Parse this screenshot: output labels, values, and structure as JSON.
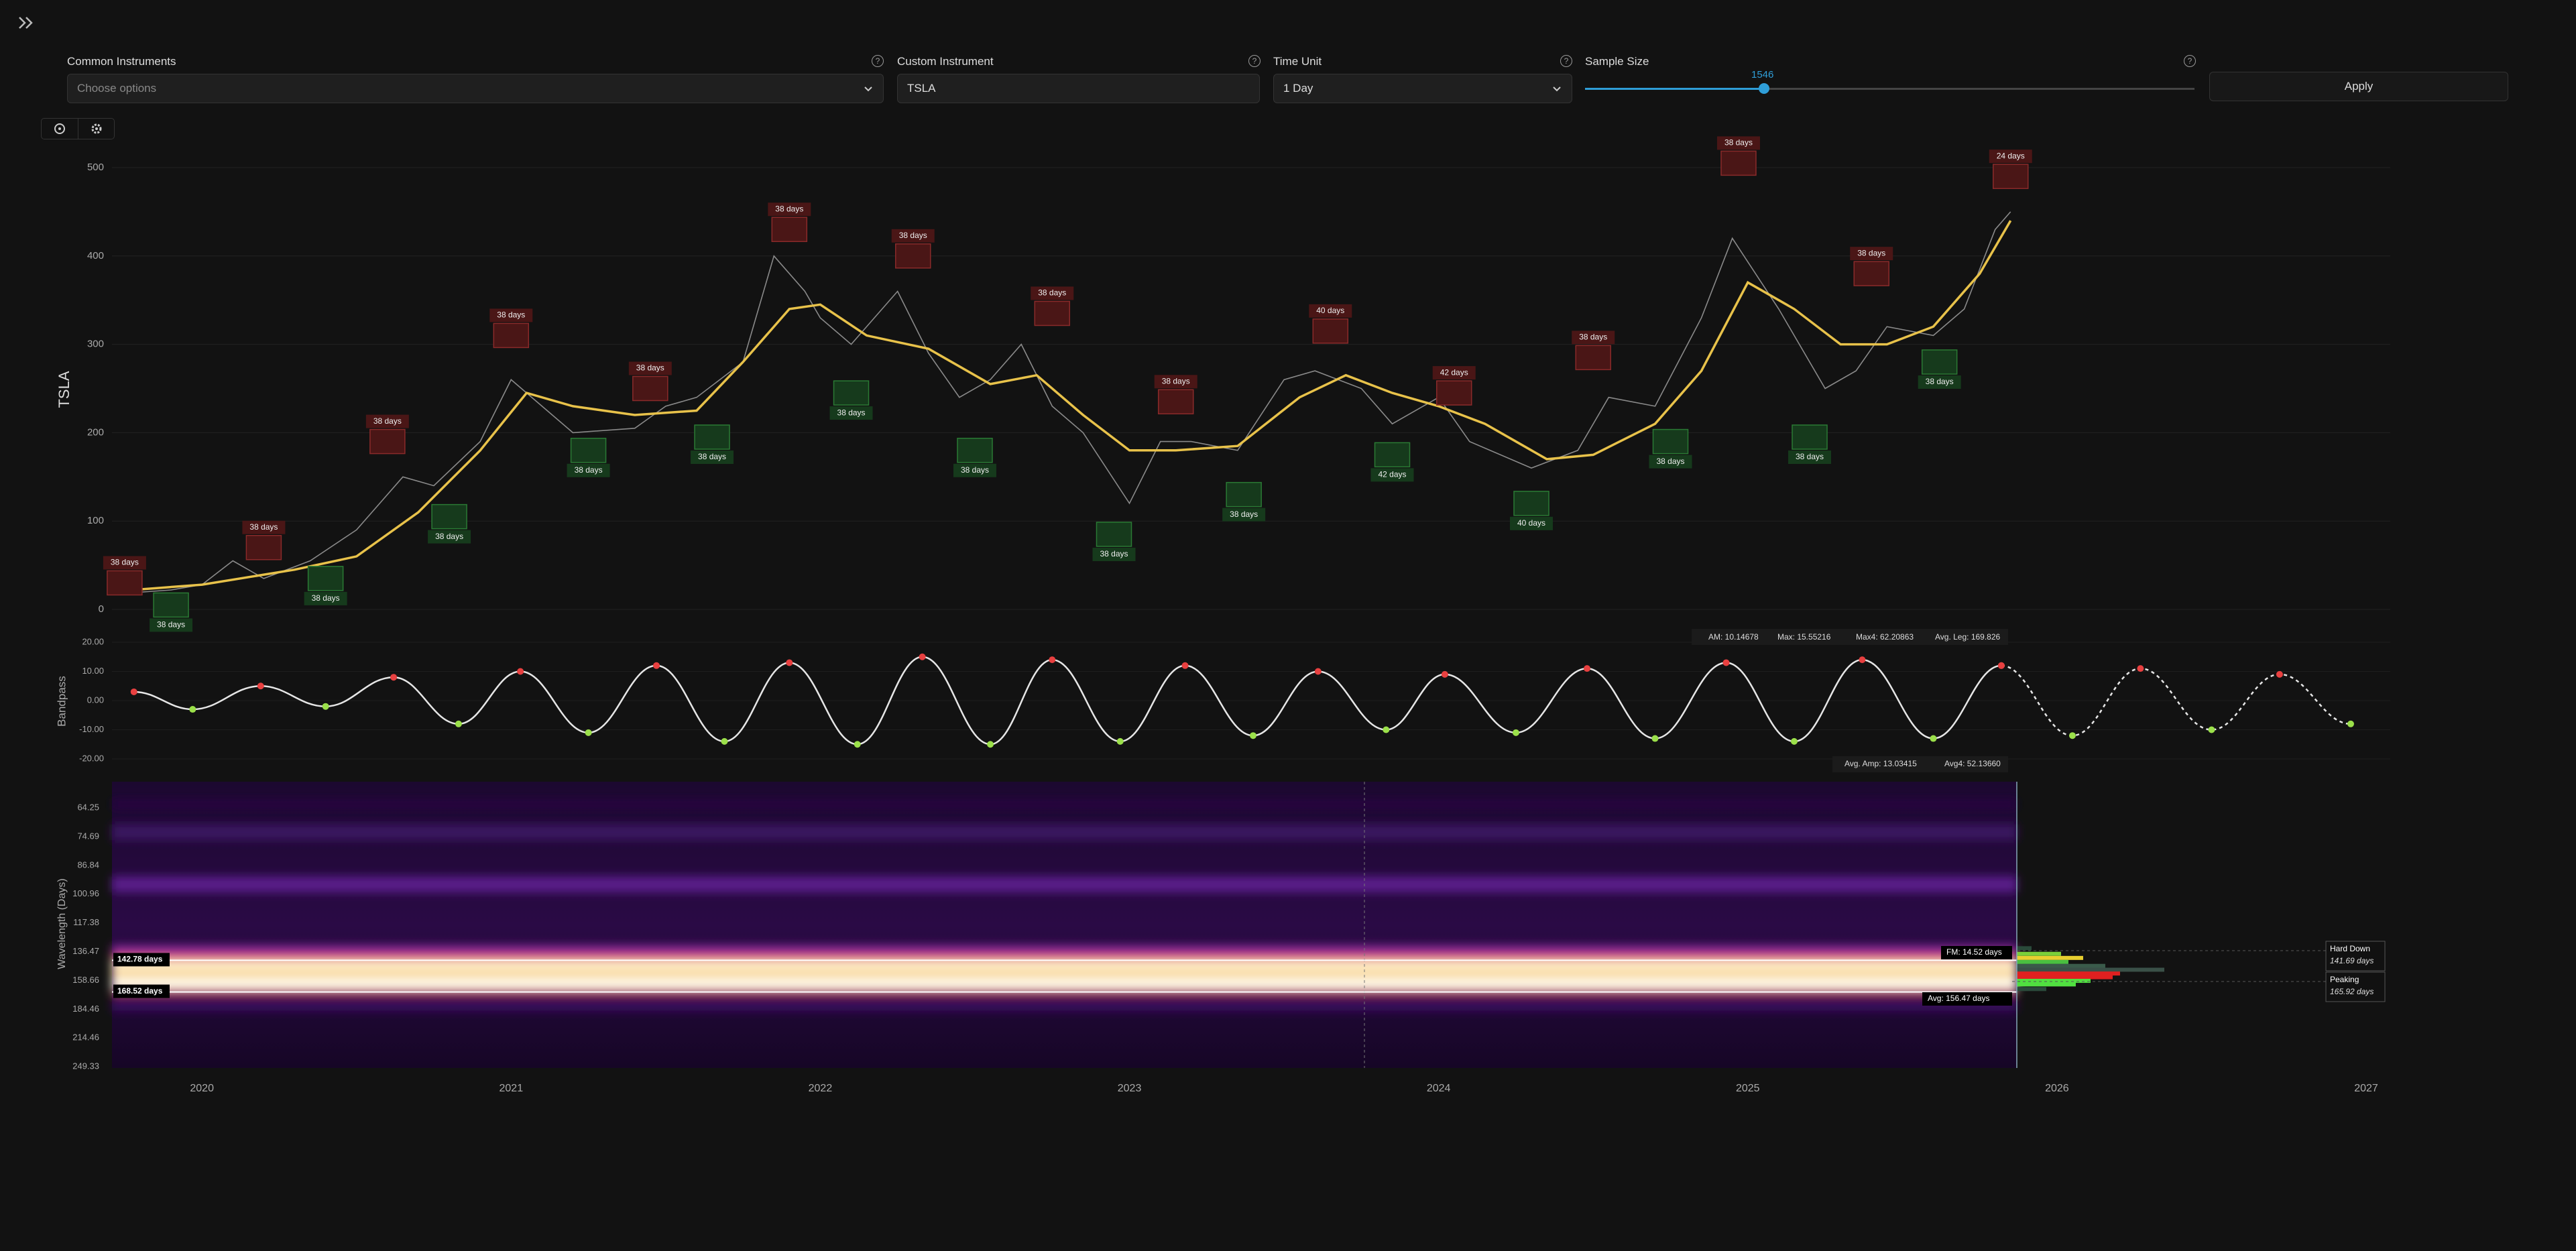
{
  "controls": {
    "common_instruments": {
      "label": "Common Instruments",
      "placeholder": "Choose options"
    },
    "custom_instrument": {
      "label": "Custom Instrument",
      "value": "TSLA"
    },
    "time_unit": {
      "label": "Time Unit",
      "value": "1 Day"
    },
    "sample_size": {
      "label": "Sample Size",
      "value": 1546
    },
    "apply": "Apply"
  },
  "chart_data": [
    {
      "type": "line",
      "ylabel": "TSLA",
      "xlim": [
        2019.709,
        2027.078
      ],
      "xticks": [
        2020,
        2021,
        2022,
        2023,
        2024,
        2025,
        2026,
        2027
      ],
      "ylim": [
        0,
        500
      ],
      "yticks": [
        0,
        100,
        200,
        300,
        400,
        500
      ],
      "grid": true,
      "series": [
        {
          "name": "Price",
          "color": "#8a8a8a",
          "x": [
            2019.7,
            2019.9,
            2020.0,
            2020.1,
            2020.2,
            2020.35,
            2020.5,
            2020.65,
            2020.75,
            2020.9,
            2021.0,
            2021.1,
            2021.2,
            2021.4,
            2021.5,
            2021.6,
            2021.75,
            2021.85,
            2021.95,
            2022.0,
            2022.1,
            2022.25,
            2022.35,
            2022.45,
            2022.55,
            2022.65,
            2022.75,
            2022.85,
            2023.0,
            2023.1,
            2023.2,
            2023.35,
            2023.5,
            2023.6,
            2023.75,
            2023.85,
            2024.0,
            2024.1,
            2024.3,
            2024.45,
            2024.55,
            2024.7,
            2024.85,
            2024.95,
            2025.1,
            2025.25,
            2025.35,
            2025.45,
            2025.6,
            2025.7,
            2025.8,
            2025.85
          ],
          "values": [
            17,
            22,
            28,
            55,
            35,
            55,
            90,
            150,
            140,
            190,
            260,
            230,
            200,
            205,
            230,
            240,
            280,
            400,
            360,
            330,
            300,
            360,
            290,
            240,
            260,
            300,
            230,
            200,
            120,
            190,
            190,
            180,
            260,
            270,
            250,
            210,
            240,
            190,
            160,
            180,
            240,
            230,
            330,
            420,
            340,
            250,
            270,
            320,
            310,
            340,
            430,
            450
          ]
        },
        {
          "name": "Smooth",
          "color": "#e8c24a",
          "x": [
            2019.7,
            2020.0,
            2020.3,
            2020.5,
            2020.7,
            2020.9,
            2021.05,
            2021.2,
            2021.4,
            2021.6,
            2021.75,
            2021.9,
            2022.0,
            2022.15,
            2022.35,
            2022.55,
            2022.7,
            2022.85,
            2023.0,
            2023.15,
            2023.35,
            2023.55,
            2023.7,
            2023.85,
            2024.0,
            2024.15,
            2024.35,
            2024.5,
            2024.7,
            2024.85,
            2025.0,
            2025.15,
            2025.3,
            2025.45,
            2025.6,
            2025.75,
            2025.85
          ],
          "values": [
            20,
            28,
            45,
            60,
            110,
            180,
            245,
            230,
            220,
            225,
            280,
            340,
            345,
            310,
            295,
            255,
            265,
            220,
            180,
            180,
            185,
            240,
            265,
            245,
            230,
            210,
            170,
            175,
            210,
            270,
            370,
            340,
            300,
            300,
            320,
            380,
            440
          ]
        }
      ],
      "peaks": [
        {
          "x": 2019.75,
          "y": 30,
          "label": "38 days"
        },
        {
          "x": 2020.2,
          "y": 70,
          "label": "38 days"
        },
        {
          "x": 2020.6,
          "y": 190,
          "label": "38 days"
        },
        {
          "x": 2021.0,
          "y": 310,
          "label": "38 days"
        },
        {
          "x": 2021.45,
          "y": 250,
          "label": "38 days"
        },
        {
          "x": 2021.9,
          "y": 430,
          "label": "38 days"
        },
        {
          "x": 2022.3,
          "y": 400,
          "label": "38 days"
        },
        {
          "x": 2022.75,
          "y": 335,
          "label": "38 days"
        },
        {
          "x": 2023.15,
          "y": 235,
          "label": "38 days"
        },
        {
          "x": 2023.65,
          "y": 315,
          "label": "40 days"
        },
        {
          "x": 2024.05,
          "y": 245,
          "label": "42 days"
        },
        {
          "x": 2024.5,
          "y": 285,
          "label": "38 days"
        },
        {
          "x": 2024.97,
          "y": 505,
          "label": "38 days"
        },
        {
          "x": 2025.4,
          "y": 380,
          "label": "38 days"
        },
        {
          "x": 2025.85,
          "y": 490,
          "label": "24 days"
        }
      ],
      "troughs": [
        {
          "x": 2019.9,
          "y": 5,
          "label": "38 days"
        },
        {
          "x": 2020.4,
          "y": 35,
          "label": "38 days"
        },
        {
          "x": 2020.8,
          "y": 105,
          "label": "38 days"
        },
        {
          "x": 2021.25,
          "y": 180,
          "label": "38 days"
        },
        {
          "x": 2021.65,
          "y": 195,
          "label": "38 days"
        },
        {
          "x": 2022.1,
          "y": 245,
          "label": "38 days"
        },
        {
          "x": 2022.5,
          "y": 180,
          "label": "38 days"
        },
        {
          "x": 2022.95,
          "y": 85,
          "label": "38 days"
        },
        {
          "x": 2023.37,
          "y": 130,
          "label": "38 days"
        },
        {
          "x": 2023.85,
          "y": 175,
          "label": "42 days"
        },
        {
          "x": 2024.3,
          "y": 120,
          "label": "40 days"
        },
        {
          "x": 2024.75,
          "y": 190,
          "label": "38 days"
        },
        {
          "x": 2025.2,
          "y": 195,
          "label": "38 days"
        },
        {
          "x": 2025.62,
          "y": 280,
          "label": "38 days"
        }
      ]
    },
    {
      "type": "bandpass",
      "ylabel": "Bandpass",
      "ylim": [
        -20,
        20
      ],
      "yticks": [
        {
          "value": 20,
          "label": "20.00"
        },
        {
          "value": 10,
          "label": "10.00"
        },
        {
          "value": 0,
          "label": "0.00"
        },
        {
          "value": -10,
          "label": "-10.00"
        },
        {
          "value": -20,
          "label": "-20.00"
        }
      ],
      "legend": [
        "AM: 10.14678",
        "Max: 15.55216",
        "Max4: 62.20863",
        "Avg. Leg: 169.826"
      ],
      "legend2": [
        "Avg. Amp: 13.03415",
        "Avg4: 52.13660"
      ],
      "series": [
        {
          "name": "Bandpass",
          "color": "#e6e6e6",
          "x": [
            2019.78,
            2019.97,
            2020.19,
            2020.4,
            2020.62,
            2020.83,
            2021.03,
            2021.25,
            2021.47,
            2021.69,
            2021.9,
            2022.12,
            2022.33,
            2022.55,
            2022.75,
            2022.97,
            2023.18,
            2023.4,
            2023.61,
            2023.83,
            2024.02,
            2024.25,
            2024.48,
            2024.7,
            2024.93,
            2025.15,
            2025.37,
            2025.6,
            2025.82
          ],
          "values": [
            3,
            -3,
            5,
            -2,
            8,
            -8,
            10,
            -11,
            12,
            -14,
            13,
            -15,
            15,
            -15,
            14,
            -14,
            12,
            -12,
            10,
            -10,
            9,
            -11,
            11,
            -13,
            13,
            -14,
            14,
            -13,
            12
          ]
        },
        {
          "name": "Projection",
          "color": "#e6e6e6",
          "x": [
            2025.82,
            2026.05,
            2026.27,
            2026.5,
            2026.72,
            2026.95
          ],
          "values": [
            12,
            -12,
            11,
            -10,
            9,
            -8
          ]
        }
      ]
    },
    {
      "type": "spectrogram",
      "ylabel": "Wavelength (Days)",
      "ylim": [
        56,
        251
      ],
      "log": true,
      "x_end": 2025.87,
      "cursor_x": 2023.76,
      "yticks": [
        64.25,
        74.69,
        86.84,
        100.96,
        117.38,
        136.47,
        158.66,
        184.46,
        214.46,
        249.33
      ],
      "bands": [
        {
          "span": [
            62,
            64
          ],
          "color": "#2a0c45"
        },
        {
          "span": [
            70,
            76
          ],
          "color": "#3a1460"
        },
        {
          "span": [
            92,
            100
          ],
          "color": "#5a1a8a"
        },
        {
          "span": [
            132,
            138
          ],
          "color": "#8a2a9a"
        },
        {
          "span": [
            138,
            143
          ],
          "color": "#e04a6a"
        },
        {
          "span": [
            143,
            150
          ],
          "color": "#fff4d0"
        },
        {
          "span": [
            150,
            156
          ],
          "color": "#f8d090"
        },
        {
          "span": [
            156,
            166
          ],
          "color": "#fffbe8"
        },
        {
          "span": [
            166,
            172
          ],
          "color": "#c03a6a"
        },
        {
          "span": [
            176,
            186
          ],
          "color": "#3a1060"
        }
      ],
      "markers": [
        {
          "value": 142.78,
          "label": "142.78 days"
        },
        {
          "value": 168.52,
          "label": "168.52 days"
        }
      ],
      "histogram": [
        {
          "wavelength": 134,
          "count": 20,
          "color": "#2a4a3a"
        },
        {
          "wavelength": 138,
          "count": 60,
          "color": "#7ad03a"
        },
        {
          "wavelength": 141,
          "count": 90,
          "color": "#e8d030"
        },
        {
          "wavelength": 144,
          "count": 70,
          "color": "#4ac040"
        },
        {
          "wavelength": 147,
          "count": 120,
          "color": "#3a5a4a"
        },
        {
          "wavelength": 150,
          "count": 200,
          "color": "#3a5048"
        },
        {
          "wavelength": 153,
          "count": 140,
          "color": "#e02020"
        },
        {
          "wavelength": 156,
          "count": 130,
          "color": "#e02020"
        },
        {
          "wavelength": 159,
          "count": 100,
          "color": "#50e040"
        },
        {
          "wavelength": 162,
          "count": 80,
          "color": "#50e040"
        },
        {
          "wavelength": 166,
          "count": 40,
          "color": "#2a4a3a"
        }
      ],
      "fm_label": "FM: 14.52 days",
      "avg_label": "Avg: 156.47 days",
      "cards": [
        {
          "state": "Hard Down",
          "period": "141.69 days"
        },
        {
          "state": "Peaking",
          "period": "165.92 days"
        }
      ]
    }
  ]
}
